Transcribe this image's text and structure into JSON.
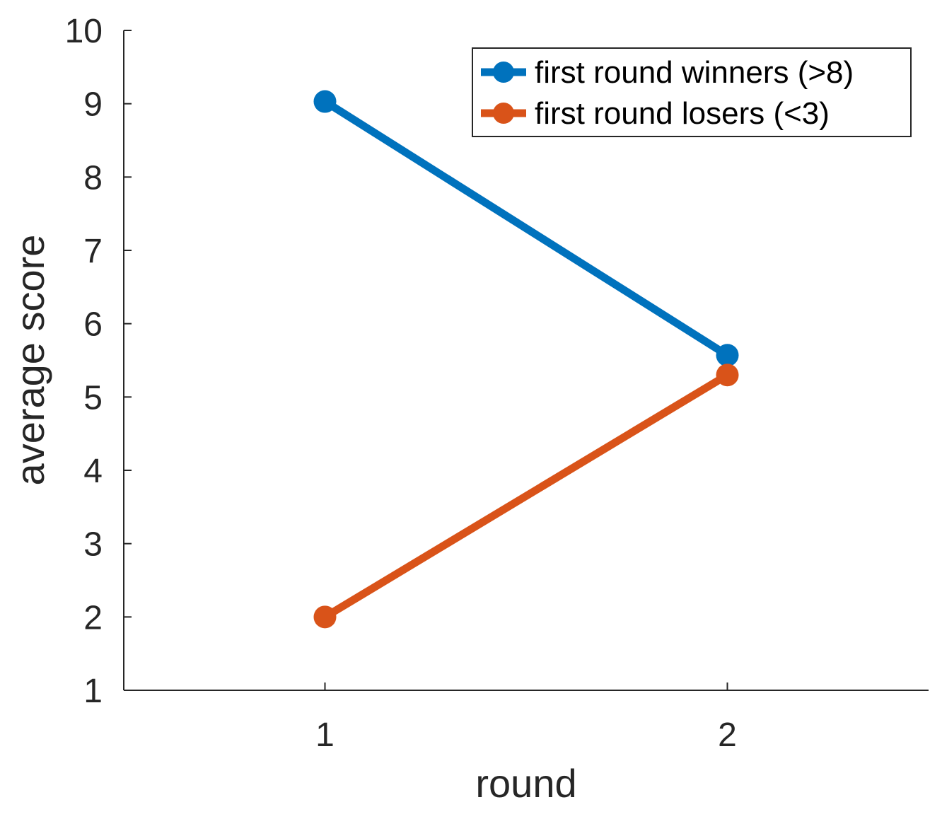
{
  "chart_data": {
    "type": "line",
    "x": [
      1,
      2
    ],
    "xticks": [
      "1",
      "2"
    ],
    "yticks": [
      "1",
      "2",
      "3",
      "4",
      "5",
      "6",
      "7",
      "8",
      "9",
      "10"
    ],
    "xlim": [
      0.5,
      2.5
    ],
    "ylim": [
      1,
      10
    ],
    "xlabel": "round",
    "ylabel": "average score",
    "grid": false,
    "legend_position": "top-right",
    "series": [
      {
        "name": "first round winners (>8)",
        "values": [
          9.03,
          5.57
        ],
        "color": "#0072BD"
      },
      {
        "name": "first round losers (<3)",
        "values": [
          2.0,
          5.3
        ],
        "color": "#D95319"
      }
    ]
  }
}
